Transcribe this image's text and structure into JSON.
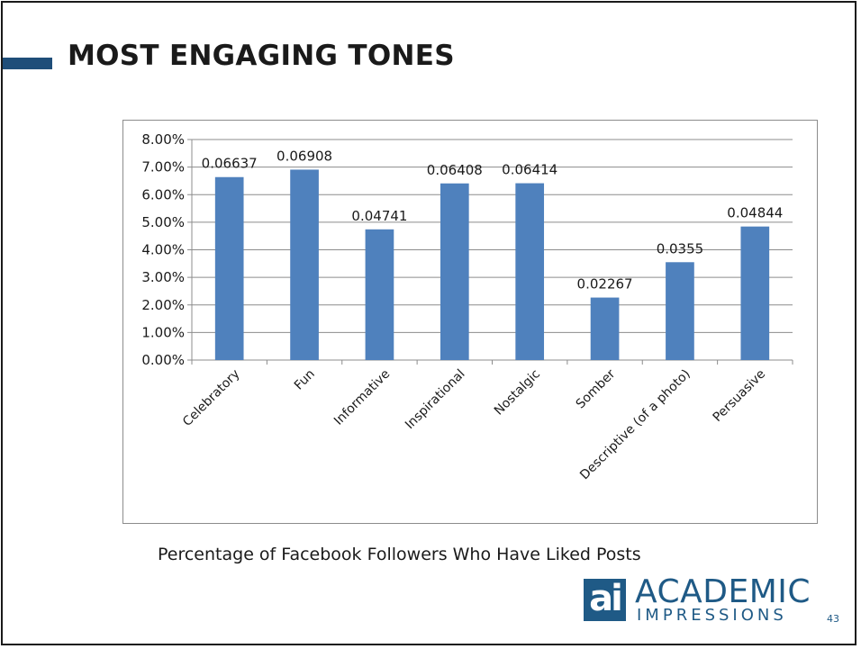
{
  "slide": {
    "title": "MOST ENGAGING TONES",
    "caption": "Percentage of Facebook Followers Who Have Liked Posts",
    "page_number": "43"
  },
  "logo": {
    "mark": "ai",
    "word1": "ACADEMIC",
    "word2": "IMPRESSIONS"
  },
  "colors": {
    "bar": "#4f81bd",
    "title_marker": "#1f4e79",
    "logo": "#1f5a86"
  },
  "chart_data": {
    "type": "bar",
    "categories": [
      "Celebratory",
      "Fun",
      "Informative",
      "Inspirational",
      "Nostalgic",
      "Somber",
      "Descriptive (of a photo)",
      "Persuasive"
    ],
    "values": [
      0.06637,
      0.06908,
      0.04741,
      0.06408,
      0.06414,
      0.02267,
      0.0355,
      0.04844
    ],
    "data_labels": [
      "0.06637",
      "0.06908",
      "0.04741",
      "0.06408",
      "0.06414",
      "0.02267",
      "0.0355",
      "0.04844"
    ],
    "title": "",
    "xlabel": "",
    "ylabel": "",
    "ylim": [
      0,
      0.08
    ],
    "y_ticks": [
      0,
      0.01,
      0.02,
      0.03,
      0.04,
      0.05,
      0.06,
      0.07,
      0.08
    ],
    "y_tick_labels": [
      "0.00%",
      "1.00%",
      "2.00%",
      "3.00%",
      "4.00%",
      "5.00%",
      "6.00%",
      "7.00%",
      "8.00%"
    ],
    "grid": true,
    "legend": "none"
  }
}
